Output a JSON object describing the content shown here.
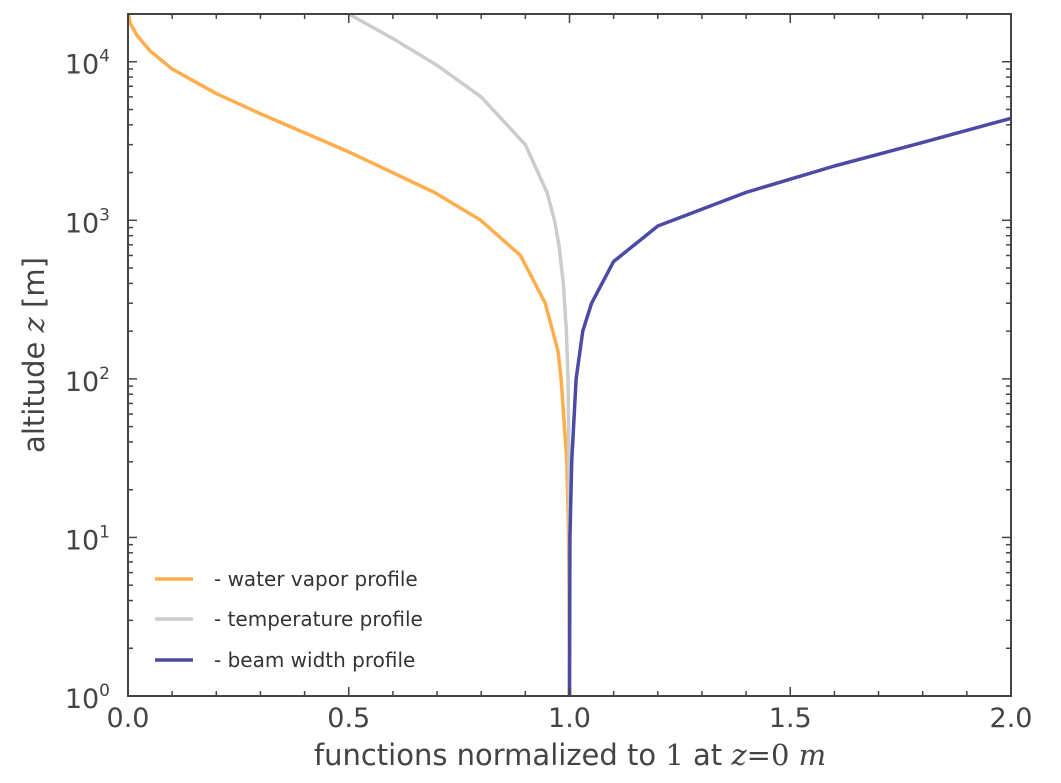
{
  "chart_data": {
    "type": "line",
    "x": {
      "label_prefix": "functions normalized to ",
      "label_one": "1",
      "label_at": " at ",
      "label_z": "z",
      "label_eq": "=0",
      "label_m": "m",
      "lim": [
        0.0,
        2.0
      ],
      "ticks": [
        0.0,
        0.5,
        1.0,
        1.5,
        2.0
      ],
      "tick_labels": [
        "0.0",
        "0.5",
        "1.0",
        "1.5",
        "2.0"
      ]
    },
    "y": {
      "label_prefix": "altitude ",
      "label_z": "z",
      "label_suffix": " [m]",
      "scale": "log",
      "lim": [
        1,
        20000
      ],
      "ticks": [
        {
          "base": "10",
          "exp": "0",
          "value": 1
        },
        {
          "base": "10",
          "exp": "1",
          "value": 10
        },
        {
          "base": "10",
          "exp": "2",
          "value": 100
        },
        {
          "base": "10",
          "exp": "3",
          "value": 1000
        },
        {
          "base": "10",
          "exp": "4",
          "value": 10000
        }
      ]
    },
    "series": [
      {
        "name": "- water vapor profile",
        "color": "#ffad4d",
        "points": [
          [
            1.0,
            1
          ],
          [
            0.998,
            10
          ],
          [
            0.994,
            30
          ],
          [
            0.981,
            100
          ],
          [
            0.974,
            150
          ],
          [
            0.945,
            300
          ],
          [
            0.889,
            600
          ],
          [
            0.799,
            1000
          ],
          [
            0.694,
            1500
          ],
          [
            0.5,
            2700
          ],
          [
            0.3,
            4700
          ],
          [
            0.2,
            6300
          ],
          [
            0.1,
            9000
          ],
          [
            0.05,
            11700
          ],
          [
            0.02,
            14700
          ],
          [
            0.005,
            17500
          ],
          [
            0.001,
            20000
          ]
        ]
      },
      {
        "name": "- temperature profile",
        "color": "#cccccc",
        "points": [
          [
            1.0,
            1
          ],
          [
            0.9997,
            10
          ],
          [
            0.999,
            30
          ],
          [
            0.9966,
            100
          ],
          [
            0.993,
            200
          ],
          [
            0.986,
            400
          ],
          [
            0.976,
            700
          ],
          [
            0.966,
            1000
          ],
          [
            0.949,
            1500
          ],
          [
            0.9,
            3000
          ],
          [
            0.8,
            6000
          ],
          [
            0.7,
            9500
          ],
          [
            0.6,
            14000
          ],
          [
            0.5,
            20000
          ]
        ]
      },
      {
        "name": "- beam width profile",
        "color": "#4b4ba6",
        "points": [
          [
            1.0,
            1
          ],
          [
            1.001,
            10
          ],
          [
            1.005,
            30
          ],
          [
            1.015,
            100
          ],
          [
            1.03,
            200
          ],
          [
            1.05,
            300
          ],
          [
            1.1,
            550
          ],
          [
            1.2,
            920
          ],
          [
            1.4,
            1500
          ],
          [
            1.6,
            2200
          ],
          [
            1.8,
            3100
          ],
          [
            2.0,
            4400
          ]
        ]
      }
    ],
    "legend": {
      "position": "lower-left"
    },
    "grid": false
  }
}
